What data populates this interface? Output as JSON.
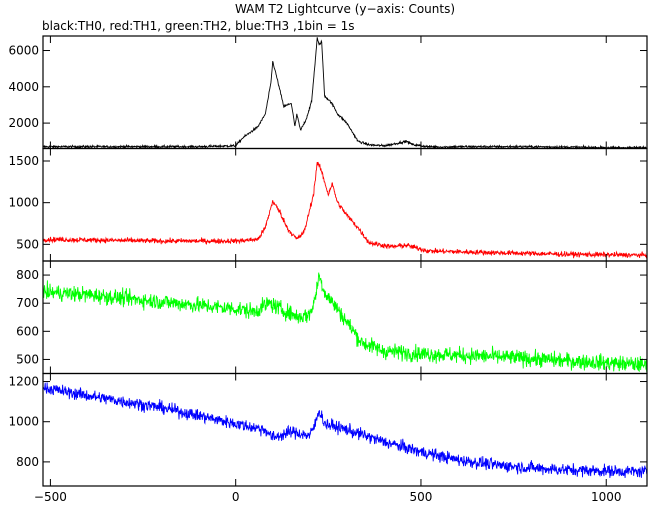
{
  "chart_data": {
    "type": "line",
    "title": "WAM T2 Lightcurve (y−axis: Counts)",
    "subtitle": "black:TH0, red:TH1, green:TH2, blue:TH3 ,1bin = 1s",
    "xlim": [
      -520,
      1110
    ],
    "x_ticks": [
      -500,
      0,
      500,
      1000
    ],
    "x_tick_labels": [
      "−500",
      "0",
      "500",
      "1000"
    ],
    "bin_seconds": 1,
    "panels": [
      {
        "name": "TH0",
        "color": "#000000",
        "ylim": [
          600,
          6800
        ],
        "y_ticks": [
          2000,
          4000,
          6000
        ],
        "y_tick_labels": [
          "2000",
          "4000",
          "6000"
        ],
        "noise": 60,
        "x": [
          -520,
          -100,
          0,
          20,
          40,
          60,
          80,
          95,
          100,
          110,
          130,
          150,
          160,
          165,
          175,
          190,
          205,
          215,
          220,
          225,
          232,
          240,
          255,
          265,
          275,
          300,
          330,
          360,
          400,
          440,
          460,
          480,
          520,
          560,
          600,
          800,
          1000,
          1110
        ],
        "values": [
          700,
          700,
          750,
          1200,
          1500,
          1800,
          2500,
          4200,
          5400,
          4600,
          2900,
          3100,
          1800,
          2500,
          1600,
          2200,
          3200,
          5500,
          6700,
          6300,
          6500,
          3500,
          3200,
          2900,
          2500,
          2000,
          1000,
          800,
          750,
          900,
          1000,
          800,
          700,
          680,
          700,
          700,
          650,
          650
        ]
      },
      {
        "name": "TH1",
        "color": "#ff0000",
        "ylim": [
          300,
          1650
        ],
        "y_ticks": [
          500,
          1000,
          1500
        ],
        "y_tick_labels": [
          "500",
          "1000",
          "1500"
        ],
        "noise": 30,
        "x": [
          -520,
          -200,
          0,
          60,
          80,
          100,
          120,
          140,
          165,
          185,
          210,
          220,
          230,
          250,
          260,
          275,
          300,
          330,
          360,
          420,
          460,
          520,
          700,
          900,
          1110
        ],
        "values": [
          560,
          540,
          540,
          560,
          700,
          1020,
          880,
          690,
          560,
          650,
          1100,
          1480,
          1400,
          1100,
          1230,
          1000,
          850,
          700,
          520,
          470,
          490,
          420,
          400,
          380,
          370
        ]
      },
      {
        "name": "TH2",
        "color": "#00ff00",
        "ylim": [
          450,
          850
        ],
        "y_ticks": [
          500,
          600,
          700,
          800
        ],
        "y_tick_labels": [
          "500",
          "600",
          "700",
          "800"
        ],
        "noise": 28,
        "x": [
          -520,
          -400,
          -200,
          0,
          50,
          90,
          120,
          170,
          200,
          215,
          225,
          240,
          280,
          340,
          400,
          500,
          700,
          900,
          1110
        ],
        "values": [
          740,
          730,
          705,
          680,
          670,
          700,
          680,
          650,
          660,
          720,
          800,
          740,
          670,
          560,
          530,
          520,
          510,
          495,
          480
        ]
      },
      {
        "name": "TH3",
        "color": "#0000ff",
        "ylim": [
          680,
          1240
        ],
        "y_ticks": [
          800,
          1000,
          1200
        ],
        "y_tick_labels": [
          "800",
          "1000",
          "1200"
        ],
        "noise": 30,
        "x": [
          -520,
          -400,
          -200,
          0,
          80,
          100,
          150,
          200,
          215,
          225,
          240,
          300,
          400,
          500,
          600,
          700,
          800,
          900,
          1000,
          1110
        ],
        "values": [
          1170,
          1130,
          1070,
          990,
          960,
          920,
          950,
          930,
          990,
          1060,
          990,
          960,
          900,
          850,
          810,
          785,
          770,
          760,
          755,
          750
        ]
      }
    ]
  }
}
